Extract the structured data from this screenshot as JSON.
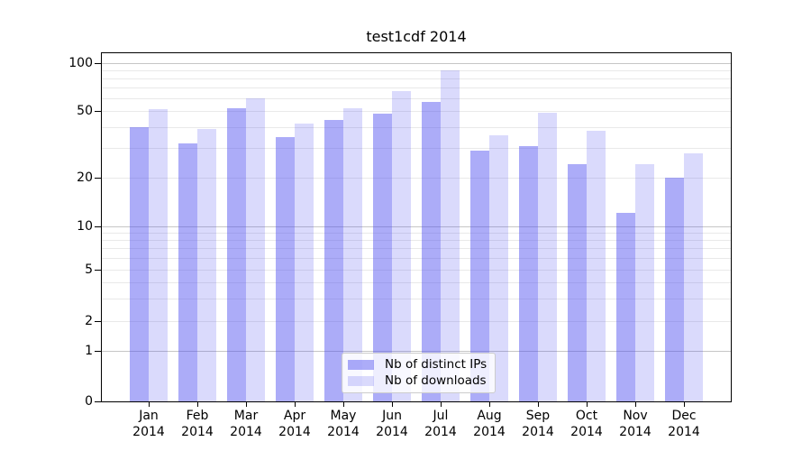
{
  "chart_data": {
    "type": "bar",
    "title": "test1cdf 2014",
    "categories": [
      "Jan",
      "Feb",
      "Mar",
      "Apr",
      "May",
      "Jun",
      "Jul",
      "Aug",
      "Sep",
      "Oct",
      "Nov",
      "Dec"
    ],
    "year_label": "2014",
    "series": [
      {
        "name": "Nb of distinct IPs",
        "color": "#4646F073",
        "values": [
          40,
          32,
          52,
          35,
          44,
          48,
          57,
          29,
          31,
          24,
          12,
          20
        ]
      },
      {
        "name": "Nb of downloads",
        "color": "#4646F033",
        "values": [
          51,
          39,
          60,
          42,
          52,
          67,
          90,
          36,
          49,
          38,
          24,
          28
        ]
      }
    ],
    "xlabel": "",
    "ylabel": "",
    "yscale": "custom-log",
    "ylim": [
      0,
      100
    ],
    "y_ticks": [
      0,
      1,
      2,
      5,
      10,
      20,
      50,
      100
    ],
    "y_tick_labels": [
      "0",
      "1",
      "2",
      "5",
      "10",
      "20",
      "50",
      "100"
    ],
    "y_decade_gridlines": [
      1,
      10,
      100
    ],
    "y_minor_gridlines": [
      3,
      4,
      6,
      7,
      8,
      9,
      30,
      40,
      60,
      70,
      80,
      90
    ],
    "grid": true,
    "legend_position": "lower center"
  },
  "colors": {
    "bar_distinct_ips": "#4646F073",
    "bar_downloads": "#4646F033",
    "grid_major": "#c6c6c6",
    "grid_minor": "#e9e9e9",
    "axis_spine": "#000000",
    "legend_border": "#cccccc",
    "legend_background": "#FFFFFFCC",
    "text": "#000000"
  }
}
